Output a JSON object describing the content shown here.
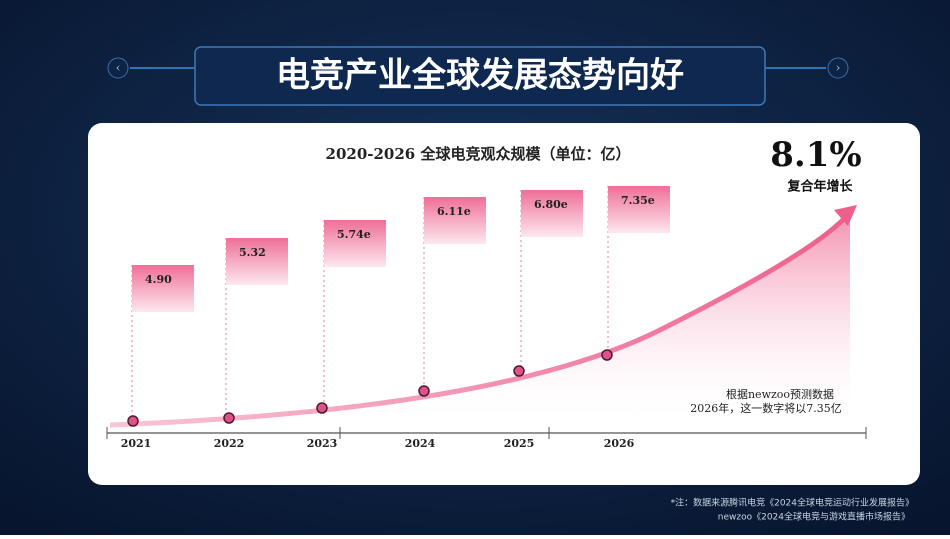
{
  "header": {
    "title": "电竞产业全球发展态势向好"
  },
  "card": {
    "title": "2020-2026 全球电竞观众规模（单位：亿）",
    "growth": "8.1%",
    "growth_label": "复合年增长",
    "note_lines": [
      "根据newzoo预测数据",
      "2026年，这一数字将以7.35亿"
    ]
  },
  "timeline": [
    {
      "year": "2021",
      "label": "4.90"
    },
    {
      "year": "2022",
      "label": "5.32"
    },
    {
      "year": "2023",
      "label": "5.74e"
    },
    {
      "year": "2024",
      "label": "6.11e"
    },
    {
      "year": "2025",
      "label": "6.80e"
    },
    {
      "year": "2026",
      "label": "7.35e"
    }
  ],
  "footnotes": [
    "*注：数据来源腾讯电竞《2024全球电竞运动行业发展报告》",
    "newzoo《2024全球电竞与游戏直播市场报告》"
  ]
}
